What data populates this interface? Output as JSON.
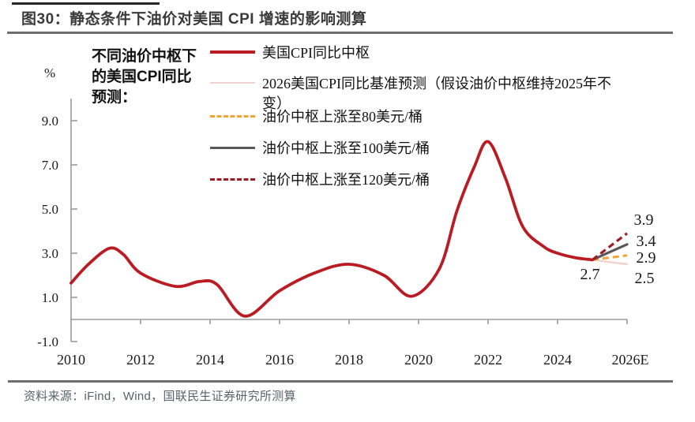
{
  "header": {
    "title": "图30：静态条件下油价对美国 CPI 增速的影响测算"
  },
  "annotation": {
    "text": "不同油价中枢下\n的美国CPI同比\n预测："
  },
  "legend": {
    "items": [
      {
        "label": "美国CPI同比中枢",
        "swatch": "solid-red"
      },
      {
        "label": "2026美国CPI同比基准预测（假设油价中枢维持2025年不\n变）",
        "swatch": "solid-pink"
      },
      {
        "label": "油价中枢上涨至80美元/桶",
        "swatch": "dashed-orange"
      },
      {
        "label": "油价中枢上涨至100美元/桶",
        "swatch": "solid-gray"
      },
      {
        "label": "油价中枢上涨至120美元/桶",
        "swatch": "dashed-darkred"
      }
    ]
  },
  "axes": {
    "y_unit": "%",
    "y_ticks": [
      "9.0",
      "7.0",
      "5.0",
      "3.0",
      "1.0",
      "-1.0"
    ],
    "x_ticks": [
      "2010",
      "2012",
      "2014",
      "2016",
      "2018",
      "2020",
      "2022",
      "2024",
      "2026E"
    ]
  },
  "point_labels": {
    "junction_2025": "2.7",
    "oil120_2026": "3.9",
    "oil100_2026": "3.4",
    "oil80_2026": "2.9",
    "baseline_2026": "2.5"
  },
  "footer": {
    "source": "资料来源：iFind，Wind，国联民生证券研究所测算"
  },
  "colors": {
    "red": "#B91D23",
    "pink": "#F0D3D0",
    "orange": "#F2A436",
    "gray": "#595959",
    "darkred": "#9C1E24",
    "axis": "#9B9B9B",
    "rule": "#6E6E6E",
    "topline": "#282828",
    "title_text": "#3A3A3A",
    "footer_text": "#5A626B",
    "label_text": "#1A1A1A"
  },
  "chart_data": {
    "type": "line",
    "title": "静态条件下油价对美国CPI增速的影响测算",
    "ylabel": "%",
    "ylim": [
      -1.0,
      9.0
    ],
    "xlim": [
      2010,
      2026
    ],
    "x_tick_step": 2,
    "grid": false,
    "legend_position": "top",
    "series": [
      {
        "name": "美国CPI同比中枢",
        "color": "red",
        "width": 3.8,
        "dash": "",
        "points": [
          [
            2010,
            1.65
          ],
          [
            2010.5,
            2.5
          ],
          [
            2011.1,
            3.22
          ],
          [
            2011.5,
            2.95
          ],
          [
            2012,
            2.1
          ],
          [
            2013,
            1.5
          ],
          [
            2013.7,
            1.72
          ],
          [
            2014.2,
            1.58
          ],
          [
            2015,
            0.15
          ],
          [
            2016,
            1.3
          ],
          [
            2017,
            2.1
          ],
          [
            2018,
            2.5
          ],
          [
            2019,
            2.0
          ],
          [
            2019.8,
            1.05
          ],
          [
            2020.6,
            2.3
          ],
          [
            2021.1,
            4.9
          ],
          [
            2021.6,
            6.9
          ],
          [
            2022,
            8.05
          ],
          [
            2022.5,
            6.4
          ],
          [
            2023,
            4.2
          ],
          [
            2023.6,
            3.3
          ],
          [
            2024,
            3.0
          ],
          [
            2024.5,
            2.8
          ],
          [
            2025,
            2.7
          ]
        ]
      },
      {
        "name": "2026美国CPI同比基准预测（假设油价中枢维持2025年不变）",
        "color": "pink",
        "width": 2.4,
        "dash": "",
        "points": [
          [
            2025,
            2.7
          ],
          [
            2026,
            2.5
          ]
        ]
      },
      {
        "name": "油价中枢上涨至80美元/桶",
        "color": "orange",
        "width": 3,
        "dash": "8 5",
        "points": [
          [
            2025,
            2.7
          ],
          [
            2026,
            2.9
          ]
        ]
      },
      {
        "name": "油价中枢上涨至100美元/桶",
        "color": "gray",
        "width": 3.2,
        "dash": "",
        "points": [
          [
            2025,
            2.7
          ],
          [
            2026,
            3.4
          ]
        ]
      },
      {
        "name": "油价中枢上涨至120美元/桶",
        "color": "darkred",
        "width": 3.2,
        "dash": "8 5",
        "points": [
          [
            2025,
            2.7
          ],
          [
            2026,
            3.9
          ]
        ]
      }
    ]
  }
}
